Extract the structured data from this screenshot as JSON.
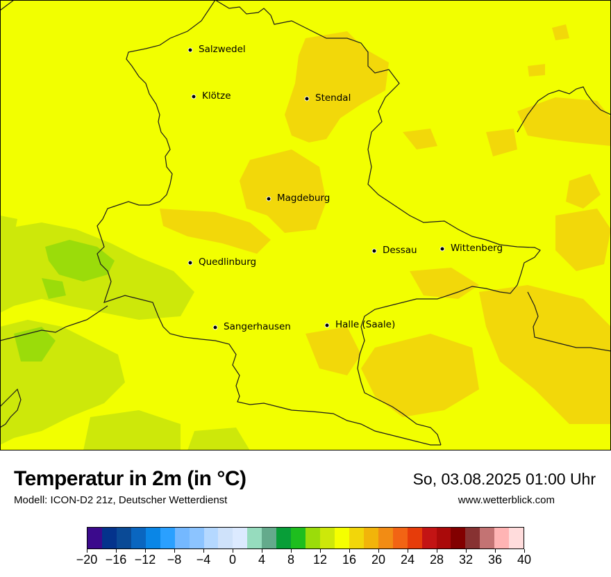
{
  "title": "Temperatur in 2m (in °C)",
  "subtitle": "Modell: ICON-D2 21z, Deutscher Wetterdienst",
  "datetime": "So, 03.08.2025 01:00 Uhr",
  "website": "www.wetterblick.com",
  "cities": [
    {
      "name": "Salzwedel"
    },
    {
      "name": "Klötze"
    },
    {
      "name": "Stendal"
    },
    {
      "name": "Magdeburg"
    },
    {
      "name": "Dessau"
    },
    {
      "name": "Wittenberg"
    },
    {
      "name": "Quedlinburg"
    },
    {
      "name": "Sangerhausen"
    },
    {
      "name": "Halle (Saale)"
    }
  ],
  "colorbar": {
    "colors": [
      "#3b0a8c",
      "#04338c",
      "#0a4a96",
      "#0a66c0",
      "#0a86e6",
      "#2aa0ff",
      "#74b8ff",
      "#8cc4ff",
      "#b4d8ff",
      "#cfe2fa",
      "#dceaff",
      "#96dcbe",
      "#64aa8c",
      "#089e38",
      "#1ebe1e",
      "#9bdc0a",
      "#cde80a",
      "#f5ff00",
      "#f2d60a",
      "#f2b40a",
      "#f28c14",
      "#f26414",
      "#e63c0a",
      "#c31414",
      "#aa0a0a",
      "#820000",
      "#873232",
      "#c37373",
      "#ffb4b4",
      "#ffdcdc"
    ],
    "tick_labels": [
      "−20",
      "−16",
      "−12",
      "−8",
      "−4",
      "0",
      "4",
      "8",
      "12",
      "16",
      "20",
      "24",
      "28",
      "32",
      "36",
      "40"
    ]
  }
}
